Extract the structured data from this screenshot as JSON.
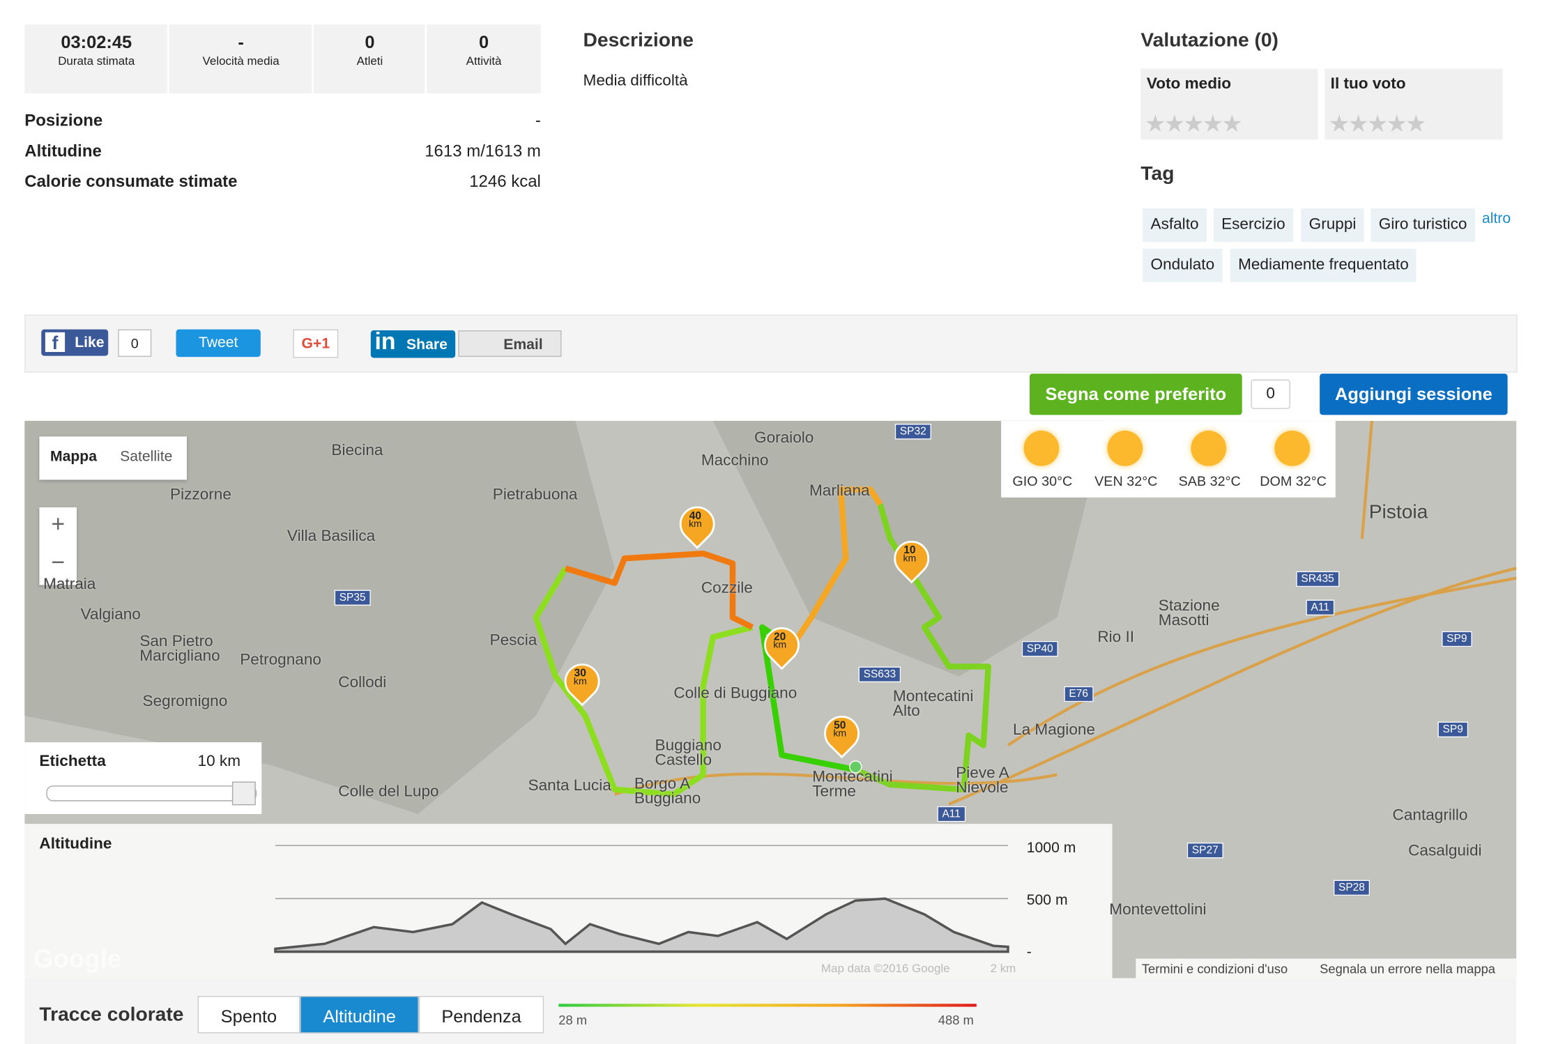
{
  "stats": [
    {
      "value": "03:02:45",
      "label": "Durata stimata"
    },
    {
      "value": "-",
      "label": "Velocità media"
    },
    {
      "value": "0",
      "label": "Atleti"
    },
    {
      "value": "0",
      "label": "Attività"
    }
  ],
  "details": [
    {
      "label": "Posizione",
      "value": "-"
    },
    {
      "label": "Altitudine",
      "value": "1613 m/1613 m"
    },
    {
      "label": "Calorie consumate stimate",
      "value": "1246 kcal"
    }
  ],
  "description": {
    "title": "Descrizione",
    "text": "Media difficoltà"
  },
  "rating": {
    "title": "Valutazione (0)",
    "average": "Voto medio",
    "yours": "Il tuo voto"
  },
  "tags": {
    "title": "Tag",
    "items": [
      "Asfalto",
      "Esercizio",
      "Gruppi",
      "Giro turistico",
      "Ondulato",
      "Mediamente frequentato"
    ],
    "more": "altro"
  },
  "social": {
    "like": "Like",
    "like_count": "0",
    "tweet": "Tweet",
    "gplus": "G+1",
    "share": "Share",
    "email": "Email"
  },
  "actions": {
    "favorite": "Segna come preferito",
    "favorite_count": "0",
    "add_session": "Aggiungi sessione"
  },
  "map": {
    "types": [
      "Mappa",
      "Satellite"
    ],
    "zoom_in": "+",
    "zoom_out": "−",
    "places": [
      "Biecina",
      "Goraiolo",
      "Macchino",
      "Pizzorne",
      "Pietrabuona",
      "Villa Basilica",
      "Marliana",
      "Pistoia",
      "Matraia",
      "Valgiano",
      "San Pietro Marcigliano",
      "Petrognano",
      "Collodi",
      "Segromigno",
      "Pescia",
      "Cozzile",
      "Colle di Buggiano",
      "Buggiano Castello",
      "Montecatini Alto",
      "Stazione Masotti",
      "Rio II",
      "La Magione",
      "Santa Lucia",
      "Borgo A Buggiano",
      "Montecatini Terme",
      "Pieve A Nievole",
      "Colle del Lupo",
      "Cantagrillo",
      "Casalguidi",
      "Montevettolini"
    ],
    "roads": [
      "SP32",
      "SP35",
      "SP40",
      "SS633",
      "E76",
      "SR435",
      "A11",
      "SP9",
      "SP9",
      "SP27",
      "SP28",
      "A11"
    ]
  },
  "weather": [
    "GIO 30°C",
    "VEN 32°C",
    "SAB 32°C",
    "DOM 32°C"
  ],
  "km_markers": [
    {
      "num": "10",
      "unit": "km"
    },
    {
      "num": "20",
      "unit": "km"
    },
    {
      "num": "30",
      "unit": "km"
    },
    {
      "num": "40",
      "unit": "km"
    },
    {
      "num": "50",
      "unit": "km"
    }
  ],
  "label_control": {
    "title": "Etichetta",
    "value": "10 km"
  },
  "altitude": {
    "title": "Altitudine",
    "ticks": [
      "1000 m",
      "500 m",
      "-"
    ]
  },
  "footer": {
    "map_data": "Map data ©2016 Google",
    "scale": "2 km",
    "terms": "Termini e condizioni d'uso",
    "report": "Segnala un errore nella mappa"
  },
  "colored_tracks": {
    "title": "Tracce colorate",
    "options": [
      "Spento",
      "Altitudine",
      "Pendenza"
    ],
    "selected": "Altitudine",
    "min": "28 m",
    "max": "488 m"
  }
}
